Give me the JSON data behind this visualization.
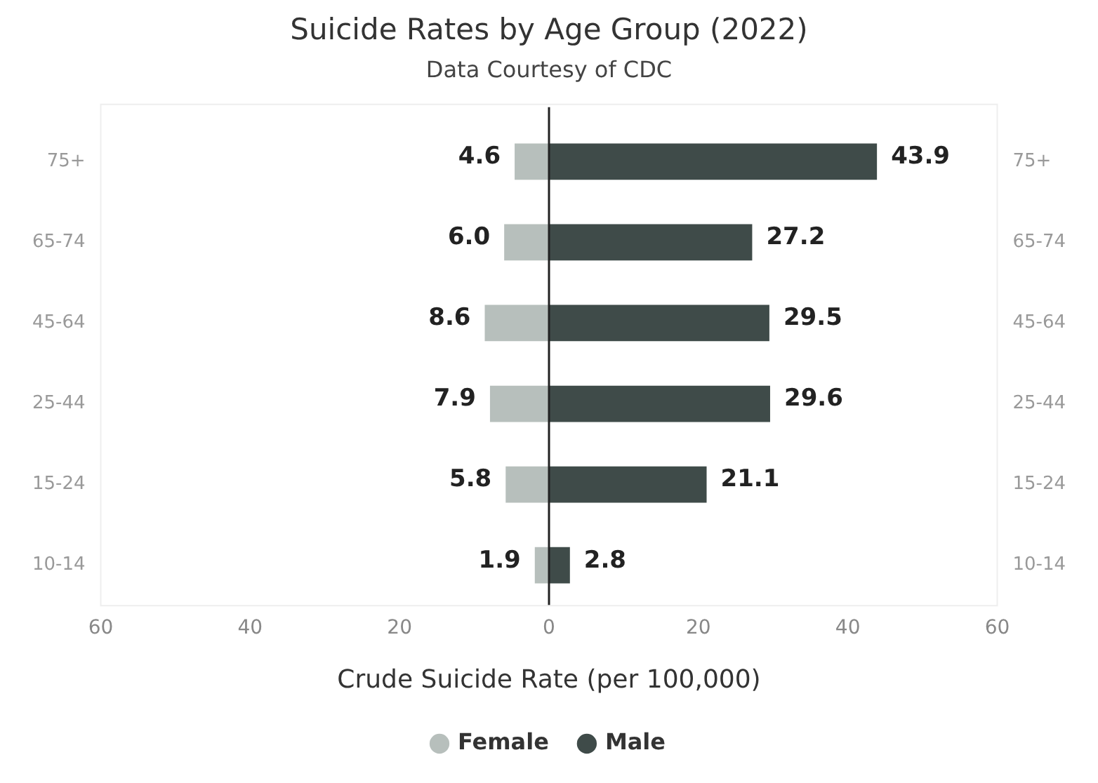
{
  "chart_data": {
    "type": "bar",
    "orientation": "horizontal",
    "title": "Suicide Rates by Age Group (2022)",
    "subtitle": "Data Courtesy of CDC",
    "xlabel": "Crude Suicide Rate (per 100,000)",
    "categories": [
      "75+",
      "65-74",
      "45-64",
      "25-44",
      "15-24",
      "10-14"
    ],
    "series": [
      {
        "name": "Female",
        "color": "#b7bfbc",
        "values": [
          4.6,
          6.0,
          8.6,
          7.9,
          5.8,
          1.9
        ],
        "base": [
          -4.6,
          -6.0,
          -8.6,
          -7.9,
          -5.8,
          -1.9
        ],
        "value_labels": [
          "4.6",
          "6.0",
          "8.6",
          "7.9",
          "5.8",
          "1.9"
        ]
      },
      {
        "name": "Male",
        "color": "#3f4b49",
        "values": [
          43.9,
          27.2,
          29.5,
          29.6,
          21.1,
          2.8
        ],
        "value_labels": [
          "43.9",
          "27.2",
          "29.5",
          "29.6",
          "21.1",
          "2.8"
        ]
      }
    ],
    "xlim": [
      -60,
      60
    ],
    "xticks": [
      {
        "value": -60,
        "label": "60"
      },
      {
        "value": -40,
        "label": "40"
      },
      {
        "value": -20,
        "label": "20"
      },
      0,
      20,
      40,
      60
    ],
    "ref_lines": [
      {
        "axis": "x",
        "value": 0,
        "color": "#222222"
      }
    ],
    "grid": false,
    "legend": "bottom",
    "marker": "circle"
  }
}
